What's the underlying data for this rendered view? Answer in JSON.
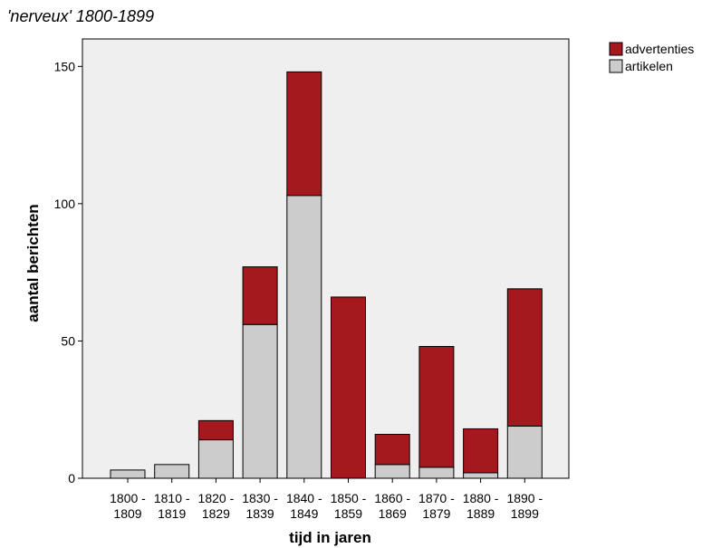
{
  "chart_data": {
    "type": "bar",
    "stacked": true,
    "title": "'nerveux' 1800-1899",
    "xlabel": "tijd in jaren",
    "ylabel": "aantal berichten",
    "ylim": [
      0,
      160
    ],
    "yticks": [
      0,
      50,
      100,
      150
    ],
    "grid": false,
    "legend_position": "top-right",
    "categories": [
      [
        "1800 -",
        "1809"
      ],
      [
        "1810 -",
        "1819"
      ],
      [
        "1820 -",
        "1829"
      ],
      [
        "1830 -",
        "1839"
      ],
      [
        "1840 -",
        "1849"
      ],
      [
        "1850 -",
        "1859"
      ],
      [
        "1860 -",
        "1869"
      ],
      [
        "1870 -",
        "1879"
      ],
      [
        "1880 -",
        "1889"
      ],
      [
        "1890 -",
        "1899"
      ]
    ],
    "series": [
      {
        "name": "artikelen",
        "color": "#cccccc",
        "values": [
          3,
          5,
          14,
          56,
          103,
          0,
          5,
          4,
          2,
          19
        ]
      },
      {
        "name": "advertenties",
        "color": "#a3191e",
        "values": [
          0,
          0,
          7,
          21,
          45,
          66,
          11,
          44,
          16,
          50
        ]
      }
    ],
    "legend_order": [
      "advertenties",
      "artikelen"
    ],
    "plot_background": "#efefef"
  }
}
